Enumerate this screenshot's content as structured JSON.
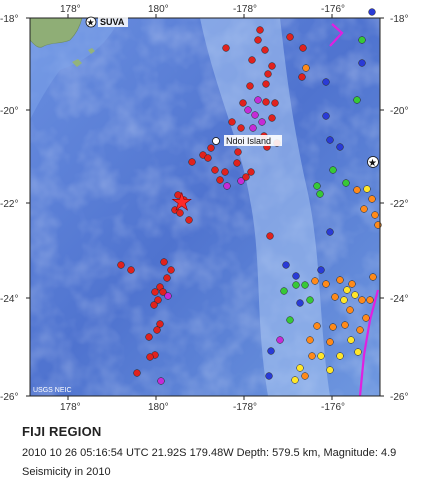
{
  "map": {
    "region_title": "FIJI REGION",
    "event_line": "2010 10 26 05:16:54 UTC 21.92S 179.48W Depth: 579.5 km, Magnitude: 4.9",
    "caption": "Seismicity in 2010",
    "credit": "USGS NEIC",
    "places": [
      {
        "name": "SUVA",
        "kind": "capital",
        "lon": 178.42,
        "lat": -18.14
      },
      {
        "name": "Ndoi Island",
        "kind": "island",
        "lon": -178.6,
        "lat": -20.7
      }
    ],
    "lon_ticks": {
      "top": [
        "178°",
        "180°",
        "-178°",
        "-176°"
      ],
      "bottom": [
        "178°",
        "180°",
        "-178°",
        "-176°"
      ]
    },
    "lat_ticks": {
      "left": [
        "-18°",
        "-20°",
        "-22°",
        "-24°",
        "-26°"
      ],
      "right": [
        "-18°",
        "-20°",
        "-22°",
        "-24°",
        "-26°"
      ]
    },
    "extent": {
      "lon_min": 177,
      "lon_max": -175,
      "lat_min": -26,
      "lat_max": -18
    },
    "main_event": {
      "lon": -179.48,
      "lat": -21.92,
      "symbol": "star",
      "color": "#ff2a2a"
    },
    "depth_colors": {
      "red": "#e0221e",
      "magenta": "#c52bd6",
      "blue": "#2a3bd6",
      "green": "#37c837",
      "yellow": "#ffe62a",
      "orange": "#ff8a1a"
    },
    "plate_boundary_color": "#e020e0"
  }
}
